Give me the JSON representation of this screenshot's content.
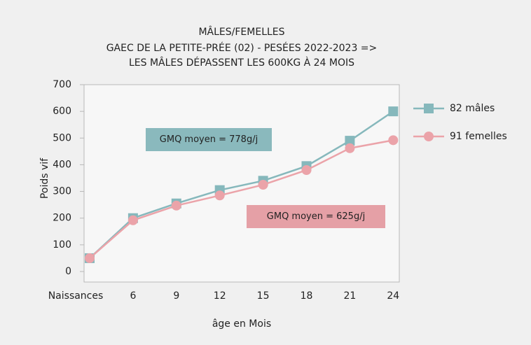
{
  "chart_data": {
    "type": "line",
    "title": [
      "MÂLES/FEMELLES",
      "GAEC DE LA PETITE-PRÉE (02) - PESÉES 2022-2023 =>",
      "LES MÂLES DÉPASSENT LES 600KG À 24 MOIS"
    ],
    "x_label": "âge en Mois",
    "y_label": "Poids vif",
    "categories": [
      "Naissances",
      "6",
      "9",
      "12",
      "15",
      "18",
      "21",
      "24"
    ],
    "series": [
      {
        "name": "82 mâles",
        "color": "#86b8bc",
        "marker": "square",
        "values": [
          50,
          200,
          255,
          305,
          340,
          395,
          490,
          600
        ]
      },
      {
        "name": "91 femelles",
        "color": "#eba3a9",
        "marker": "circle",
        "values": [
          50,
          192,
          247,
          285,
          325,
          380,
          462,
          492
        ]
      }
    ],
    "annotations": [
      {
        "text": "GMQ moyen = 778g/j",
        "color": "#8ab9bd"
      },
      {
        "text": "GMQ moyen = 625g/j",
        "color": "#e5a0a6"
      }
    ],
    "ylim": [
      0,
      700
    ],
    "yticks": [
      0,
      100,
      200,
      300,
      400,
      500,
      600,
      700
    ],
    "legend": "right"
  }
}
